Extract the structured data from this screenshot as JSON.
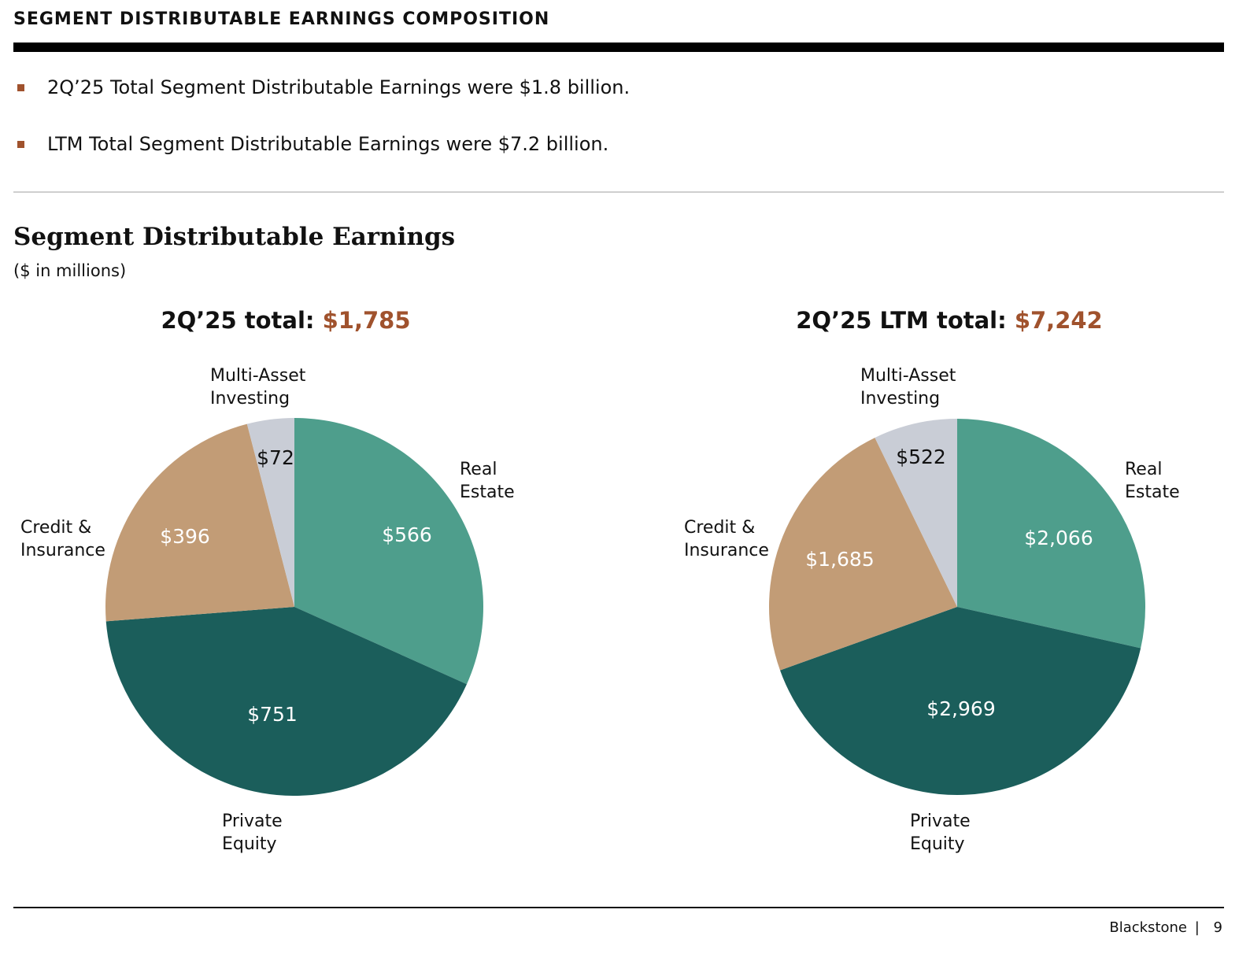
{
  "header": {
    "title": "SEGMENT DISTRIBUTABLE EARNINGS COMPOSITION"
  },
  "bullets": [
    "2Q’25 Total Segment Distributable Earnings were $1.8 billion.",
    "LTM Total Segment Distributable Earnings were $7.2 billion."
  ],
  "section": {
    "title": "Segment Distributable Earnings",
    "subtitle": "($ in millions)"
  },
  "colors": {
    "accent": "#A0522D",
    "real_estate": "#4E9E8C",
    "private_equity": "#1B5E5B",
    "credit_insurance": "#C29C76",
    "multi_asset": "#C9CDD6"
  },
  "chart_data": [
    {
      "type": "pie",
      "title_prefix": "2Q’25 total: ",
      "title_value": "$1,785",
      "slices": [
        {
          "category": "Real Estate",
          "label_lines": [
            "Real",
            "Estate"
          ],
          "value": 566,
          "value_label": "$566",
          "color_key": "real_estate",
          "value_text_color": "#ffffff"
        },
        {
          "category": "Private Equity",
          "label_lines": [
            "Private",
            "Equity"
          ],
          "value": 751,
          "value_label": "$751",
          "color_key": "private_equity",
          "value_text_color": "#ffffff"
        },
        {
          "category": "Credit & Insurance",
          "label_lines": [
            "Credit &",
            "Insurance"
          ],
          "value": 396,
          "value_label": "$396",
          "color_key": "credit_insurance",
          "value_text_color": "#ffffff"
        },
        {
          "category": "Multi-Asset Investing",
          "label_lines": [
            "Multi-Asset",
            "Investing"
          ],
          "value": 72,
          "value_label": "$72",
          "color_key": "multi_asset",
          "value_text_color": "#111111"
        }
      ]
    },
    {
      "type": "pie",
      "title_prefix": "2Q’25 LTM total: ",
      "title_value": "$7,242",
      "slices": [
        {
          "category": "Real Estate",
          "label_lines": [
            "Real",
            "Estate"
          ],
          "value": 2066,
          "value_label": "$2,066",
          "color_key": "real_estate",
          "value_text_color": "#ffffff"
        },
        {
          "category": "Private Equity",
          "label_lines": [
            "Private",
            "Equity"
          ],
          "value": 2969,
          "value_label": "$2,969",
          "color_key": "private_equity",
          "value_text_color": "#ffffff"
        },
        {
          "category": "Credit & Insurance",
          "label_lines": [
            "Credit &",
            "Insurance"
          ],
          "value": 1685,
          "value_label": "$1,685",
          "color_key": "credit_insurance",
          "value_text_color": "#ffffff"
        },
        {
          "category": "Multi-Asset Investing",
          "label_lines": [
            "Multi-Asset",
            "Investing"
          ],
          "value": 522,
          "value_label": "$522",
          "color_key": "multi_asset",
          "value_text_color": "#111111"
        }
      ]
    }
  ],
  "footer": {
    "brand": "Blackstone",
    "separator": "|",
    "page": "9"
  }
}
